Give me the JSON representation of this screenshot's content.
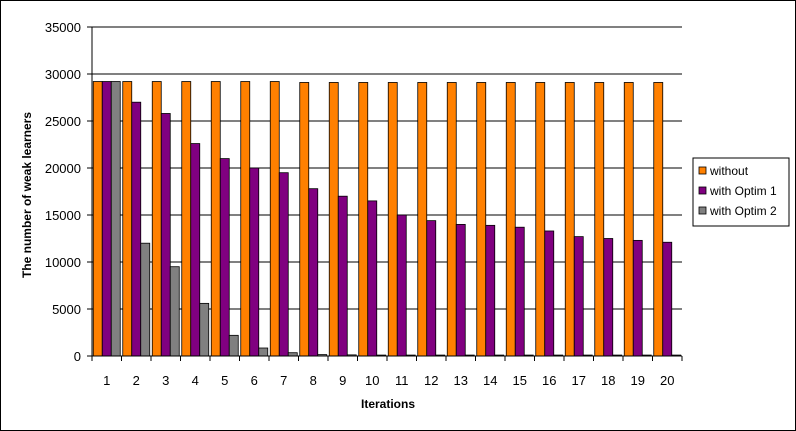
{
  "chart_data": {
    "type": "bar",
    "title": "",
    "xlabel": "Iterations",
    "ylabel": "The number of weak learners",
    "ylim": [
      0,
      35000
    ],
    "yticks": [
      0,
      5000,
      10000,
      15000,
      20000,
      25000,
      30000,
      35000
    ],
    "grid": true,
    "legend_position": "right",
    "categories": [
      "1",
      "2",
      "3",
      "4",
      "5",
      "6",
      "7",
      "8",
      "9",
      "10",
      "11",
      "12",
      "13",
      "14",
      "15",
      "16",
      "17",
      "18",
      "19",
      "20"
    ],
    "series": [
      {
        "name": "without",
        "color": "#ff8000",
        "values": [
          29200,
          29200,
          29200,
          29200,
          29200,
          29200,
          29200,
          29100,
          29100,
          29100,
          29100,
          29100,
          29100,
          29100,
          29100,
          29100,
          29100,
          29100,
          29100,
          29100
        ]
      },
      {
        "name": "with Optim 1",
        "color": "#800080",
        "values": [
          29200,
          27000,
          25800,
          22600,
          21000,
          20000,
          19500,
          17800,
          17000,
          16500,
          15000,
          14400,
          14000,
          13900,
          13700,
          13300,
          12700,
          12500,
          12300,
          12100
        ]
      },
      {
        "name": "with Optim 2",
        "color": "#808080",
        "values": [
          29200,
          12000,
          9500,
          5600,
          2200,
          850,
          350,
          150,
          120,
          100,
          100,
          100,
          100,
          100,
          100,
          100,
          100,
          100,
          100,
          100
        ]
      }
    ]
  }
}
